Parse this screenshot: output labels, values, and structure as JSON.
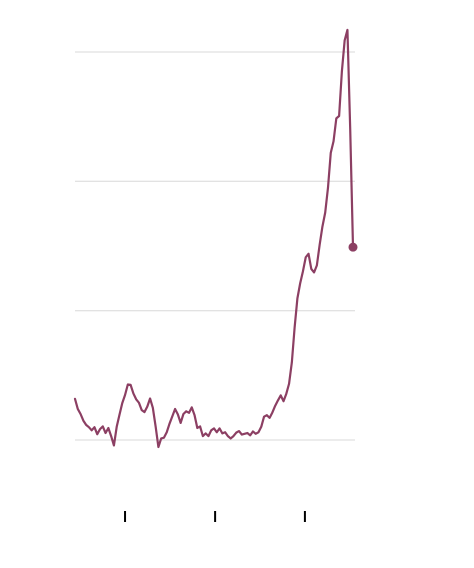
{
  "chart_data": {
    "type": "line",
    "title": "",
    "xlabel": "",
    "ylabel": "",
    "grid": true,
    "xlim": [
      0,
      100
    ],
    "ylim": [
      0,
      100
    ],
    "y_gridlines": [
      0,
      33.3,
      66.7,
      100
    ],
    "x_ticks": [
      18,
      50.4,
      82.7
    ],
    "series": [
      {
        "color": "#8c3f63",
        "end_marker": true,
        "points": [
          [
            0,
            10.6
          ],
          [
            1,
            8.0
          ],
          [
            2,
            6.7
          ],
          [
            3,
            5.0
          ],
          [
            4,
            3.9
          ],
          [
            5,
            3.3
          ],
          [
            6,
            2.5
          ],
          [
            7,
            3.3
          ],
          [
            8,
            1.5
          ],
          [
            9,
            2.8
          ],
          [
            10,
            3.5
          ],
          [
            11,
            1.8
          ],
          [
            12,
            3.1
          ],
          [
            13,
            1.0
          ],
          [
            14,
            -1.4
          ],
          [
            15,
            3.4
          ],
          [
            16,
            6.5
          ],
          [
            17,
            9.5
          ],
          [
            18,
            11.6
          ],
          [
            19,
            14.3
          ],
          [
            20,
            14.2
          ],
          [
            21,
            12.0
          ],
          [
            22,
            10.5
          ],
          [
            23,
            9.6
          ],
          [
            24,
            7.7
          ],
          [
            25,
            7.2
          ],
          [
            26,
            8.6
          ],
          [
            27,
            10.7
          ],
          [
            28,
            8.3
          ],
          [
            29,
            3.5
          ],
          [
            30,
            -1.8
          ],
          [
            31,
            0.4
          ],
          [
            32,
            0.6
          ],
          [
            33,
            2.0
          ],
          [
            34,
            4.2
          ],
          [
            35,
            6.1
          ],
          [
            36,
            8.0
          ],
          [
            37,
            6.6
          ],
          [
            38,
            4.4
          ],
          [
            39,
            6.7
          ],
          [
            40,
            7.4
          ],
          [
            41,
            7.0
          ],
          [
            42,
            8.4
          ],
          [
            43,
            6.4
          ],
          [
            44,
            3.1
          ],
          [
            45,
            3.5
          ],
          [
            46,
            1.0
          ],
          [
            47,
            1.7
          ],
          [
            48,
            1.0
          ],
          [
            49,
            2.5
          ],
          [
            50,
            3.0
          ],
          [
            51,
            2.0
          ],
          [
            52,
            3.0
          ],
          [
            53,
            1.7
          ],
          [
            54,
            2.0
          ],
          [
            55,
            1.0
          ],
          [
            56,
            0.4
          ],
          [
            57,
            1.0
          ],
          [
            58,
            1.9
          ],
          [
            59,
            2.3
          ],
          [
            60,
            1.4
          ],
          [
            61,
            1.6
          ],
          [
            62,
            1.8
          ],
          [
            63,
            1.2
          ],
          [
            64,
            2.2
          ],
          [
            65,
            1.6
          ],
          [
            66,
            2.0
          ],
          [
            67,
            3.4
          ],
          [
            68,
            6.0
          ],
          [
            69,
            6.4
          ],
          [
            70,
            5.7
          ],
          [
            71,
            7.1
          ],
          [
            72,
            8.8
          ],
          [
            73,
            10.2
          ],
          [
            74,
            11.5
          ],
          [
            75,
            10.0
          ],
          [
            76,
            11.9
          ],
          [
            77,
            14.5
          ],
          [
            78,
            20.0
          ],
          [
            79,
            29.0
          ],
          [
            80,
            36.5
          ],
          [
            81,
            40.4
          ],
          [
            82,
            43.5
          ],
          [
            83,
            47.1
          ],
          [
            84,
            48.0
          ],
          [
            85,
            44.1
          ],
          [
            86,
            43.2
          ],
          [
            87,
            45.0
          ],
          [
            88,
            50.3
          ],
          [
            89,
            55.0
          ],
          [
            90,
            58.6
          ],
          [
            91,
            65.0
          ],
          [
            92,
            74.0
          ],
          [
            93,
            77.0
          ],
          [
            94,
            82.9
          ],
          [
            95,
            83.5
          ],
          [
            96,
            95.0
          ],
          [
            97,
            103.0
          ],
          [
            98,
            105.7
          ],
          [
            99,
            80.0
          ],
          [
            100,
            49.7
          ]
        ]
      }
    ]
  }
}
